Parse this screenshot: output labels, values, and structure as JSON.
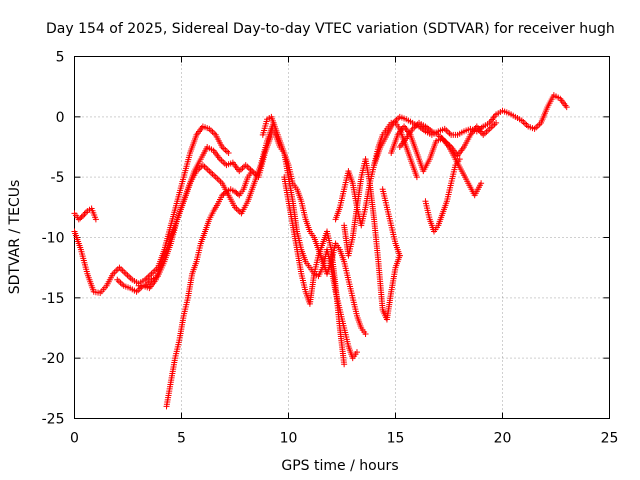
{
  "chart_data": {
    "type": "scatter",
    "title": "Day 154 of 2025, Sidereal Day-to-day VTEC variation (SDTVAR) for receiver hugh",
    "xlabel": "GPS time / hours",
    "ylabel": "SDTVAR / TECUs",
    "xlim": [
      0,
      25
    ],
    "ylim": [
      -25,
      5
    ],
    "xticks": [
      "0",
      "5",
      "10",
      "15",
      "20",
      "25"
    ],
    "yticks": [
      "-25",
      "-20",
      "-15",
      "-10",
      "-5",
      "0",
      "5"
    ],
    "grid": true,
    "legend": "none",
    "marker": "plus",
    "color": "#ff0000",
    "series": [
      {
        "x": [
          0.0,
          0.2,
          0.4,
          0.6,
          0.8,
          1.0
        ],
        "y": [
          -8.0,
          -8.5,
          -8.2,
          -7.8,
          -7.6,
          -8.5
        ]
      },
      {
        "x": [
          0.0,
          0.3,
          0.6,
          0.9,
          1.2,
          1.5,
          1.8,
          2.1,
          2.4,
          2.7,
          3.0,
          3.3,
          3.6,
          3.9,
          4.2,
          4.5,
          4.8,
          5.1,
          5.4,
          5.7,
          6.0,
          6.3,
          6.6,
          6.9,
          7.2
        ],
        "y": [
          -9.5,
          -11.0,
          -13.0,
          -14.5,
          -14.6,
          -14.0,
          -13.0,
          -12.5,
          -13.0,
          -13.5,
          -13.8,
          -13.5,
          -13.0,
          -12.5,
          -11.0,
          -9.0,
          -7.0,
          -5.0,
          -3.0,
          -1.5,
          -0.8,
          -1.0,
          -1.5,
          -2.5,
          -3.0
        ]
      },
      {
        "x": [
          2.0,
          2.3,
          2.6,
          2.9,
          3.2,
          3.5,
          3.8,
          4.1,
          4.4,
          4.7,
          5.0,
          5.3,
          5.6,
          5.9,
          6.2,
          6.5,
          6.8,
          7.1,
          7.4,
          7.7,
          8.0,
          8.3,
          8.6,
          8.9,
          9.2
        ],
        "y": [
          -13.5,
          -14.0,
          -14.2,
          -14.5,
          -14.0,
          -14.2,
          -13.5,
          -12.0,
          -10.5,
          -9.0,
          -7.5,
          -6.0,
          -4.5,
          -3.5,
          -2.5,
          -2.8,
          -3.5,
          -4.0,
          -3.8,
          -4.5,
          -4.0,
          -4.5,
          -5.0,
          -3.0,
          -1.5
        ]
      },
      {
        "x": [
          3.0,
          3.3,
          3.6,
          3.9,
          4.2,
          4.5,
          4.8,
          5.1,
          5.4,
          5.7,
          6.0,
          6.3,
          6.6,
          6.9,
          7.2,
          7.5,
          7.8,
          8.1,
          8.4,
          8.7,
          9.0,
          9.3
        ],
        "y": [
          -14.0,
          -14.0,
          -13.5,
          -13.2,
          -12.0,
          -10.5,
          -8.5,
          -7.0,
          -5.5,
          -4.5,
          -4.0,
          -4.5,
          -5.0,
          -5.5,
          -6.5,
          -7.5,
          -8.0,
          -7.0,
          -5.5,
          -4.0,
          -2.0,
          -0.5
        ]
      },
      {
        "x": [
          4.3,
          4.5,
          4.7,
          4.9,
          5.1,
          5.3,
          5.5,
          5.7,
          5.9,
          6.1,
          6.3,
          6.5,
          6.7,
          6.9,
          7.1,
          7.3,
          7.5,
          7.7,
          7.9,
          8.1,
          8.3
        ],
        "y": [
          -24.0,
          -22.0,
          -20.0,
          -18.5,
          -16.5,
          -15.0,
          -13.0,
          -12.0,
          -10.5,
          -9.5,
          -8.5,
          -7.8,
          -7.2,
          -6.5,
          -6.2,
          -6.0,
          -6.2,
          -6.5,
          -6.0,
          -5.0,
          -4.5
        ]
      },
      {
        "x": [
          8.8,
          9.0,
          9.2,
          9.4,
          9.6,
          9.8,
          10.0,
          10.2,
          10.4,
          10.6,
          10.8,
          11.0,
          11.2,
          11.4,
          11.6,
          11.8,
          12.0,
          12.2,
          12.4,
          12.6,
          12.8,
          13.0,
          13.2,
          13.4,
          13.6
        ],
        "y": [
          -1.5,
          -0.2,
          0.0,
          -1.0,
          -2.0,
          -3.0,
          -4.0,
          -5.5,
          -6.0,
          -7.0,
          -8.5,
          -9.5,
          -10.0,
          -11.0,
          -12.0,
          -13.0,
          -12.0,
          -10.5,
          -11.0,
          -12.0,
          -13.5,
          -15.0,
          -16.5,
          -17.5,
          -18.0
        ]
      },
      {
        "x": [
          9.2,
          9.4,
          9.6,
          9.8,
          10.0,
          10.2,
          10.4,
          10.6,
          10.8,
          11.0,
          11.2,
          11.4,
          11.6,
          11.8,
          12.0,
          12.2,
          12.4,
          12.6,
          12.8,
          13.0,
          13.2
        ],
        "y": [
          -1.0,
          -1.5,
          -2.5,
          -3.0,
          -5.0,
          -7.0,
          -9.5,
          -11.0,
          -12.0,
          -12.5,
          -13.0,
          -13.2,
          -12.5,
          -11.0,
          -12.5,
          -14.5,
          -16.0,
          -17.5,
          -19.0,
          -20.0,
          -19.5
        ]
      },
      {
        "x": [
          9.8,
          10.0,
          10.2,
          10.4,
          10.6,
          10.8,
          11.0,
          11.2,
          11.4,
          11.6,
          11.8,
          12.0,
          12.2,
          12.4,
          12.6
        ],
        "y": [
          -5.0,
          -7.0,
          -9.0,
          -11.0,
          -13.0,
          -14.5,
          -15.5,
          -13.0,
          -11.5,
          -10.5,
          -9.5,
          -11.0,
          -14.0,
          -17.5,
          -20.5
        ]
      },
      {
        "x": [
          12.2,
          12.4,
          12.6,
          12.8,
          13.0,
          13.2,
          13.4,
          13.6,
          13.8,
          14.0,
          14.2,
          14.4,
          14.6,
          14.8,
          15.0,
          15.2,
          15.4,
          15.6,
          15.8,
          16.0
        ],
        "y": [
          -8.5,
          -7.5,
          -6.0,
          -4.5,
          -5.5,
          -7.5,
          -9.0,
          -7.5,
          -5.5,
          -4.0,
          -2.5,
          -1.5,
          -1.0,
          -0.5,
          -0.5,
          -1.0,
          -2.0,
          -3.0,
          -4.0,
          -5.0
        ]
      },
      {
        "x": [
          12.6,
          12.8,
          13.0,
          13.2,
          13.4,
          13.6,
          13.8,
          14.0,
          14.2,
          14.4,
          14.6,
          14.8,
          15.0,
          15.2
        ],
        "y": [
          -9.0,
          -11.5,
          -10.0,
          -7.5,
          -5.0,
          -3.5,
          -5.5,
          -8.5,
          -12.0,
          -16.0,
          -16.8,
          -14.5,
          -12.5,
          -11.5
        ]
      },
      {
        "x": [
          14.0,
          14.3,
          14.6,
          14.9,
          15.2,
          15.5,
          15.8,
          16.1,
          16.4,
          16.7,
          17.0,
          17.3,
          17.6,
          17.9,
          18.2,
          18.5,
          18.8,
          19.1,
          19.4,
          19.7,
          20.0,
          20.3,
          20.6,
          20.9,
          21.2,
          21.5,
          21.8,
          22.1,
          22.4,
          22.7,
          23.0
        ],
        "y": [
          -4.0,
          -2.5,
          -1.5,
          -0.5,
          0.0,
          -0.2,
          -0.5,
          -0.8,
          -1.2,
          -1.5,
          -1.2,
          -1.0,
          -1.5,
          -1.5,
          -1.2,
          -1.0,
          -1.2,
          -0.8,
          -0.5,
          0.2,
          0.5,
          0.3,
          0.0,
          -0.3,
          -0.8,
          -1.0,
          -0.5,
          0.8,
          1.8,
          1.5,
          0.8
        ]
      },
      {
        "x": [
          14.8,
          15.1,
          15.4,
          15.7,
          16.0,
          16.3,
          16.6,
          16.9,
          17.2,
          17.5,
          17.8,
          18.1,
          18.4,
          18.7,
          19.0
        ],
        "y": [
          -3.0,
          -1.5,
          -0.8,
          -1.5,
          -3.0,
          -4.5,
          -3.5,
          -2.0,
          -1.8,
          -2.5,
          -3.5,
          -4.5,
          -5.5,
          -6.5,
          -5.5
        ]
      },
      {
        "x": [
          15.2,
          15.5,
          15.8,
          16.1,
          16.4,
          16.7,
          17.0,
          17.3,
          17.6,
          17.9,
          18.2,
          18.5,
          18.8,
          19.1,
          19.4,
          19.7
        ],
        "y": [
          -2.5,
          -1.8,
          -1.0,
          -0.5,
          -0.8,
          -1.2,
          -1.5,
          -2.0,
          -2.5,
          -3.2,
          -2.5,
          -1.5,
          -0.8,
          -1.5,
          -1.0,
          -0.5
        ]
      },
      {
        "x": [
          16.4,
          16.6,
          16.8,
          17.0,
          17.2,
          17.4,
          17.6,
          17.8,
          18.0
        ],
        "y": [
          -7.0,
          -8.5,
          -9.5,
          -9.0,
          -8.0,
          -7.0,
          -5.5,
          -4.0,
          -3.5
        ]
      },
      {
        "x": [
          14.4,
          14.6,
          14.8,
          15.0,
          15.2
        ],
        "y": [
          -6.0,
          -7.5,
          -9.0,
          -10.5,
          -11.5
        ]
      }
    ]
  }
}
